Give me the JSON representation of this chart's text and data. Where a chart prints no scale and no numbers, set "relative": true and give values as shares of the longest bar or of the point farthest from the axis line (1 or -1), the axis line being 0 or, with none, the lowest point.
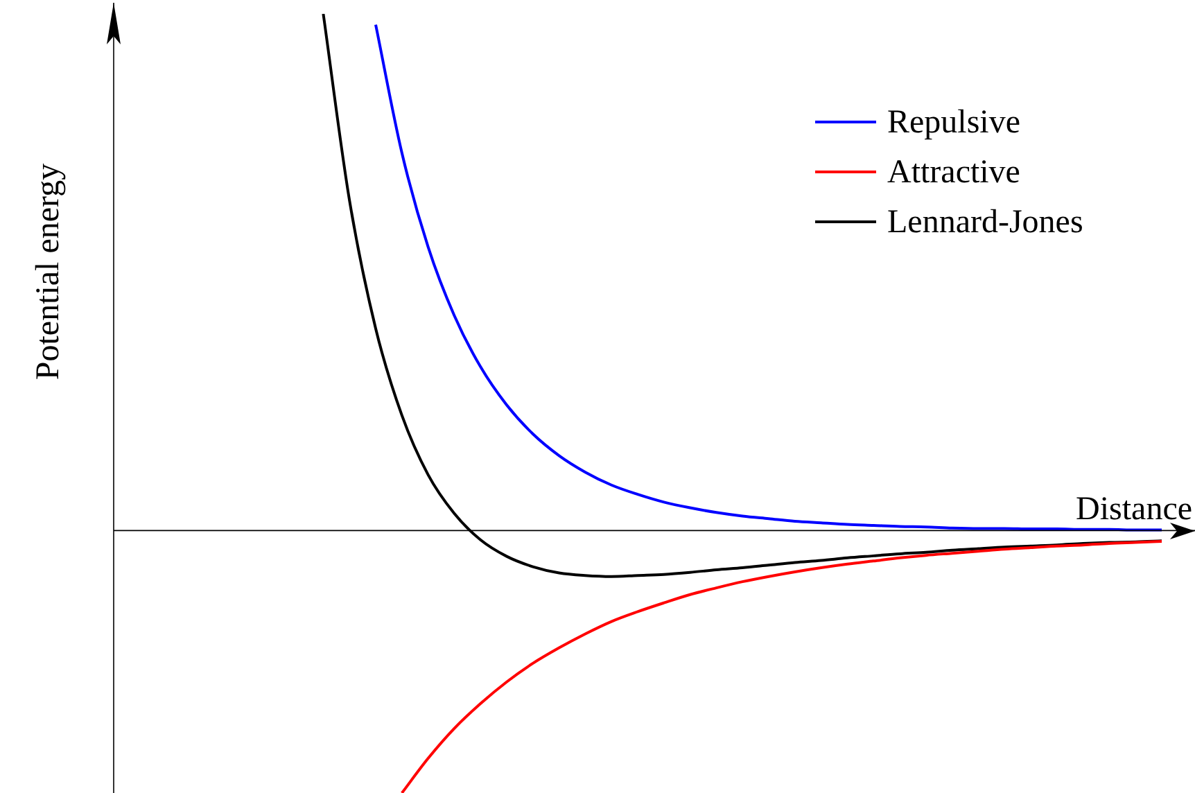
{
  "chart_data": {
    "type": "line",
    "relative": true,
    "xlabel": "Distance",
    "ylabel": "Potential energy",
    "legend": "top right",
    "grid": false,
    "marker": "none",
    "line_style": "solid",
    "categories": [
      null,
      null,
      null,
      null,
      null,
      null,
      null,
      null,
      null,
      null,
      null,
      null,
      null,
      null,
      null,
      null,
      null,
      null,
      null,
      null,
      null,
      null,
      null,
      null,
      null,
      null,
      null,
      null,
      null,
      null,
      null,
      null,
      null,
      null,
      null,
      null,
      null,
      null,
      null,
      null,
      null
    ],
    "series": [
      {
        "name": "Repulsive",
        "color": "#0000ff",
        "values": [
          null,
          null,
          null,
          null,
          null,
          null,
          null,
          null,
          null,
          null,
          0.979,
          0.731,
          0.549,
          0.416,
          0.317,
          0.243,
          0.187,
          0.145,
          0.113,
          0.088,
          0.07,
          0.055,
          0.044,
          0.035,
          0.028,
          0.023,
          0.018,
          0.015,
          0.012,
          0.01,
          0.008,
          0.007,
          0.005,
          0.004,
          0.004,
          0.003,
          0.003,
          0.002,
          0.002,
          0.001,
          0.001
        ]
      },
      {
        "name": "Attractive",
        "color": "#ff0000",
        "values": [
          null,
          null,
          null,
          null,
          null,
          null,
          null,
          null,
          null,
          null,
          null,
          -0.508,
          -0.441,
          -0.383,
          -0.335,
          -0.293,
          -0.257,
          -0.227,
          -0.2,
          -0.176,
          -0.157,
          -0.14,
          -0.124,
          -0.111,
          -0.099,
          -0.089,
          -0.08,
          -0.072,
          -0.065,
          -0.059,
          -0.053,
          -0.048,
          -0.044,
          -0.04,
          -0.036,
          -0.033,
          -0.03,
          -0.028,
          -0.025,
          -0.023,
          -0.021
        ]
      },
      {
        "name": "Lennard-Jones",
        "color": "#000000",
        "values": [
          null,
          null,
          null,
          null,
          null,
          null,
          null,
          null,
          1.0,
          0.639,
          0.391,
          0.223,
          0.108,
          0.033,
          -0.018,
          -0.05,
          -0.07,
          -0.082,
          -0.087,
          -0.089,
          -0.087,
          -0.085,
          -0.081,
          -0.076,
          -0.072,
          -0.067,
          -0.062,
          -0.058,
          -0.053,
          -0.049,
          -0.045,
          -0.042,
          -0.038,
          -0.035,
          -0.032,
          -0.03,
          -0.028,
          -0.025,
          -0.023,
          -0.022,
          -0.02
        ]
      }
    ]
  }
}
